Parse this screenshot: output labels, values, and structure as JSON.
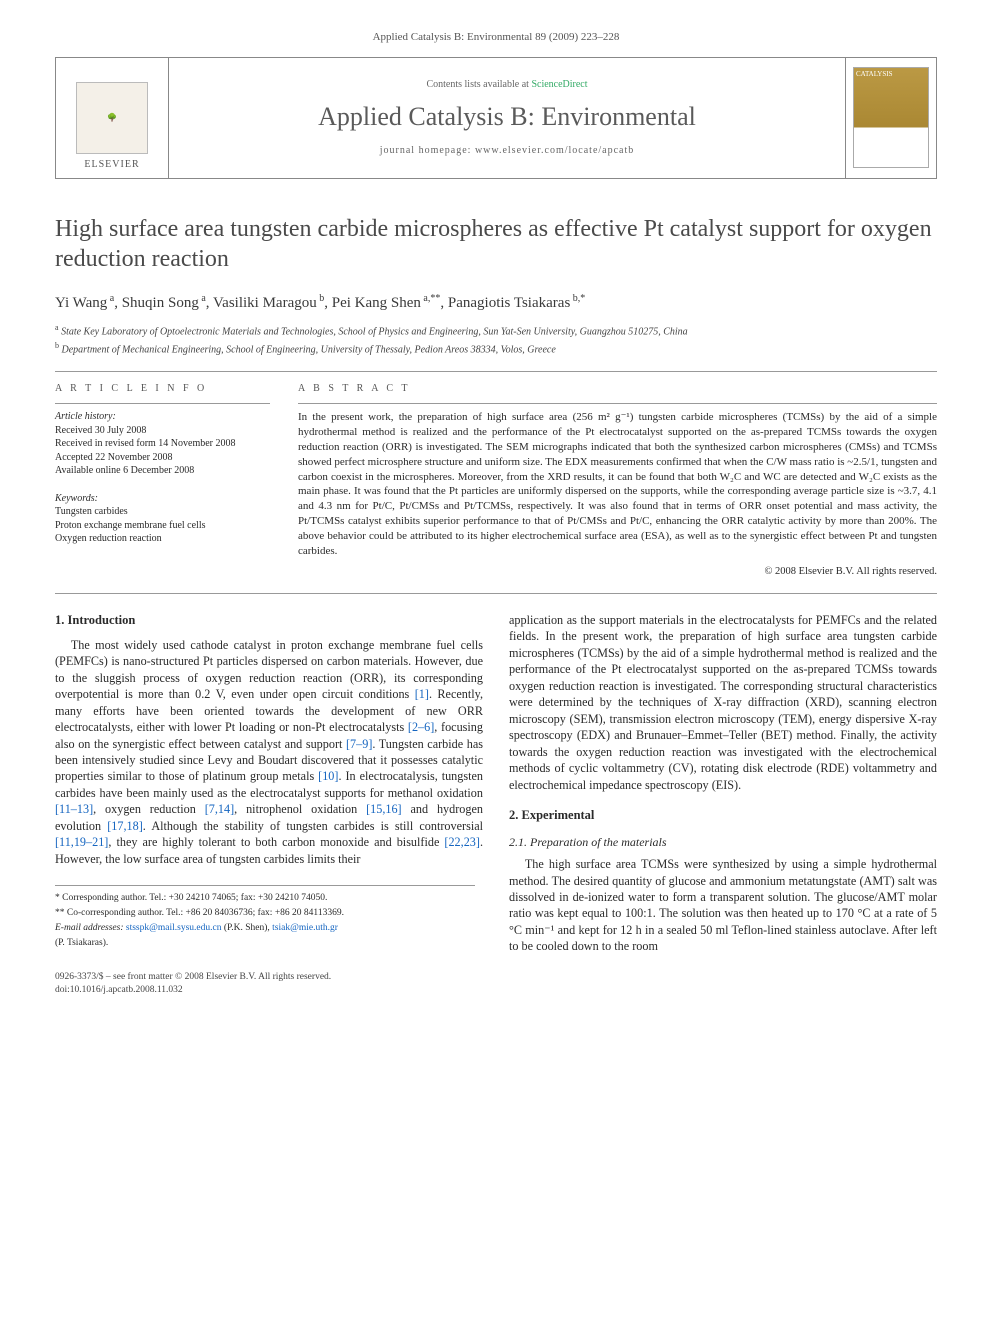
{
  "running_head": "Applied Catalysis B: Environmental 89 (2009) 223–228",
  "banner": {
    "contents_prefix": "Contents lists available at ",
    "contents_link": "ScienceDirect",
    "journal": "Applied Catalysis B: Environmental",
    "homepage_prefix": "journal homepage: ",
    "homepage": "www.elsevier.com/locate/apcatb",
    "elsevier": "ELSEVIER",
    "cover_text": "CATALYSIS"
  },
  "title": "High surface area tungsten carbide microspheres as effective Pt catalyst support for oxygen reduction reaction",
  "authors_html": "Yi Wang<sup> a</sup>, Shuqin Song<sup> a</sup>, Vasiliki Maragou<sup> b</sup>, Pei Kang Shen<sup> a,**</sup>, Panagiotis Tsiakaras<sup> b,*</sup>",
  "affiliations": [
    {
      "sup": "a",
      "text": "State Key Laboratory of Optoelectronic Materials and Technologies, School of Physics and Engineering, Sun Yat-Sen University, Guangzhou 510275, China"
    },
    {
      "sup": "b",
      "text": "Department of Mechanical Engineering, School of Engineering, University of Thessaly, Pedion Areos 38334, Volos, Greece"
    }
  ],
  "article_info_label": "A R T I C L E   I N F O",
  "abstract_label": "A B S T R A C T",
  "history_label": "Article history:",
  "history": [
    "Received 30 July 2008",
    "Received in revised form 14 November 2008",
    "Accepted 22 November 2008",
    "Available online 6 December 2008"
  ],
  "keywords_label": "Keywords:",
  "keywords": [
    "Tungsten carbides",
    "Proton exchange membrane fuel cells",
    "Oxygen reduction reaction"
  ],
  "abstract": "In the present work, the preparation of high surface area (256 m² g⁻¹) tungsten carbide microspheres (TCMSs) by the aid of a simple hydrothermal method is realized and the performance of the Pt electrocatalyst supported on the as-prepared TCMSs towards the oxygen reduction reaction (ORR) is investigated. The SEM micrographs indicated that both the synthesized carbon microspheres (CMSs) and TCMSs showed perfect microsphere structure and uniform size. The EDX measurements confirmed that when the C/W mass ratio is ~2.5/1, tungsten and carbon coexist in the microspheres. Moreover, from the XRD results, it can be found that both W₂C and WC are detected and W₂C exists as the main phase. It was found that the Pt particles are uniformly dispersed on the supports, while the corresponding average particle size is ~3.7, 4.1 and 4.3 nm for Pt/C, Pt/CMSs and Pt/TCMSs, respectively. It was also found that in terms of ORR onset potential and mass activity, the Pt/TCMSs catalyst exhibits superior performance to that of Pt/CMSs and Pt/C, enhancing the ORR catalytic activity by more than 200%. The above behavior could be attributed to its higher electrochemical surface area (ESA), as well as to the synergistic effect between Pt and tungsten carbides.",
  "copyright": "© 2008 Elsevier B.V. All rights reserved.",
  "sections": {
    "intro_head": "1. Introduction",
    "intro_p1a": "The most widely used cathode catalyst in proton exchange membrane fuel cells (PEMFCs) is nano-structured Pt particles dispersed on carbon materials. However, due to the sluggish process of oxygen reduction reaction (ORR), its corresponding overpotential is more than 0.2 V, even under open circuit conditions ",
    "intro_ref1": "[1]",
    "intro_p1b": ". Recently, many efforts have been oriented towards the development of new ORR electrocatalysts, either with lower Pt loading or non-Pt electrocatalysts ",
    "intro_ref2": "[2–6]",
    "intro_p1c": ", focusing also on the synergistic effect between catalyst and support ",
    "intro_ref3": "[7–9]",
    "intro_p1d": ". Tungsten carbide has been intensively studied since Levy and Boudart discovered that it possesses catalytic properties similar to those of platinum group metals ",
    "intro_ref4": "[10]",
    "intro_p1e": ". In electrocatalysis, tungsten carbides have been mainly used as the electrocatalyst supports for methanol oxidation ",
    "intro_ref5": "[11–13]",
    "intro_p1f": ", oxygen reduction ",
    "intro_ref6": "[7,14]",
    "intro_p1g": ", nitrophenol oxidation ",
    "intro_ref7": "[15,16]",
    "intro_p1h": " and hydrogen evolution ",
    "intro_ref8": "[17,18]",
    "intro_p1i": ". Although the stability of tungsten carbides is still controversial ",
    "intro_ref9": "[11,19–21]",
    "intro_p1j": ", they are highly tolerant to both carbon monoxide and bisulfide ",
    "intro_ref10": "[22,23]",
    "intro_p1k": ". However, the low surface area of tungsten carbides limits their",
    "intro_col2": "application as the support materials in the electrocatalysts for PEMFCs and the related fields. In the present work, the preparation of high surface area tungsten carbide microspheres (TCMSs) by the aid of a simple hydrothermal method is realized and the performance of the Pt electrocatalyst supported on the as-prepared TCMSs towards oxygen reduction reaction is investigated. The corresponding structural characteristics were determined by the techniques of X-ray diffraction (XRD), scanning electron microscopy (SEM), transmission electron microscopy (TEM), energy dispersive X-ray spectroscopy (EDX) and Brunauer–Emmet–Teller (BET) method. Finally, the activity towards the oxygen reduction reaction was investigated with the electrochemical methods of cyclic voltammetry (CV), rotating disk electrode (RDE) voltammetry and electrochemical impedance spectroscopy (EIS).",
    "exp_head": "2. Experimental",
    "exp_sub": "2.1. Preparation of the materials",
    "exp_p1": "The high surface area TCMSs were synthesized by using a simple hydrothermal method. The desired quantity of glucose and ammonium metatungstate (AMT) salt was dissolved in de-ionized water to form a transparent solution. The glucose/AMT molar ratio was kept equal to 100:1. The solution was then heated up to 170 °C at a rate of 5 °C min⁻¹ and kept for 12 h in a sealed 50 ml Teflon-lined stainless autoclave. After left to be cooled down to the room"
  },
  "footnotes": {
    "corr": "* Corresponding author. Tel.: +30 24210 74065; fax: +30 24210 74050.",
    "cocorr": "** Co-corresponding author. Tel.: +86 20 84036736; fax: +86 20 84113369.",
    "email_label": "E-mail addresses: ",
    "email1": "stsspk@mail.sysu.edu.cn",
    "email1_who": " (P.K. Shen), ",
    "email2": "tsiak@mie.uth.gr",
    "email2_who": "(P. Tsiakaras)."
  },
  "bottom": {
    "line1": "0926-3373/$ – see front matter © 2008 Elsevier B.V. All rights reserved.",
    "line2": "doi:10.1016/j.apcatb.2008.11.032"
  }
}
